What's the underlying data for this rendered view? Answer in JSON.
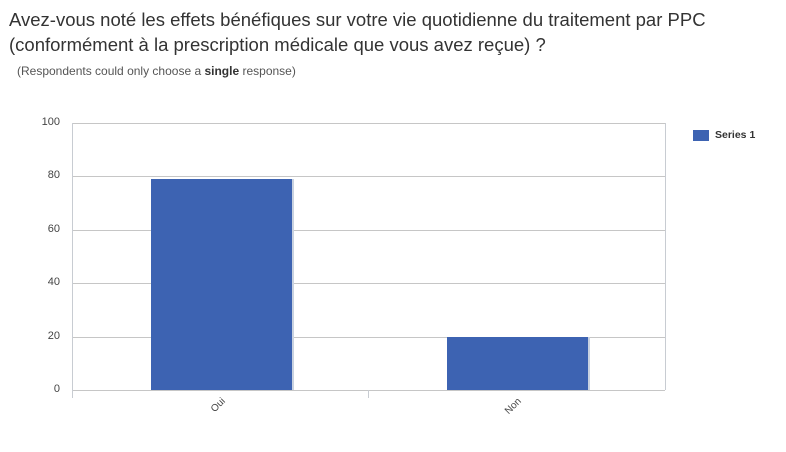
{
  "title": "Avez-vous noté les effets bénéfiques sur votre vie quotidienne du traitement par PPC (conformément à la prescription médicale que vous avez reçue) ?",
  "subtitle": {
    "prefix": "(Respondents could only choose a ",
    "bold": "single",
    "suffix": " response)"
  },
  "legend": {
    "label": "Series 1",
    "color": "#3d63b2"
  },
  "y_ticks": [
    "100",
    "80",
    "60",
    "40",
    "20",
    "0"
  ],
  "x_ticks": [
    "Oui",
    "Non"
  ],
  "chart_data": {
    "type": "bar",
    "title": "Avez-vous noté les effets bénéfiques sur votre vie quotidienne du traitement par PPC (conformément à la prescription médicale que vous avez reçue) ?",
    "subtitle": "(Respondents could only choose a single response)",
    "categories": [
      "Oui",
      "Non"
    ],
    "series": [
      {
        "name": "Series 1",
        "values": [
          79,
          20
        ],
        "color": "#3d63b2"
      }
    ],
    "xlabel": "",
    "ylabel": "",
    "ylim": [
      0,
      100
    ],
    "yticks": [
      0,
      20,
      40,
      60,
      80,
      100
    ],
    "grid": true,
    "legend_position": "right"
  }
}
